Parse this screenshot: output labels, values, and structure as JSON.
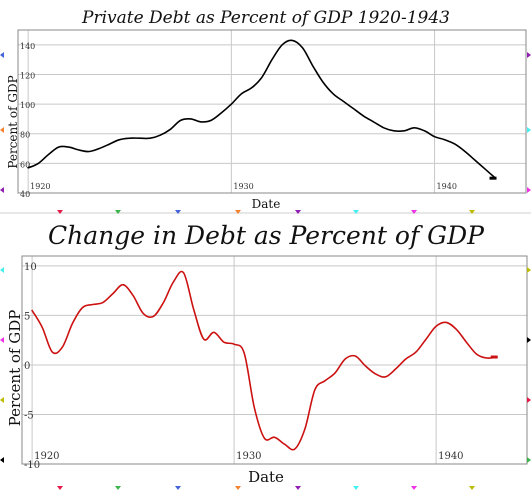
{
  "chart_data": [
    {
      "type": "line",
      "title": "Private Debt as Percent of GDP 1920-1943",
      "xlabel": "Date",
      "ylabel": "Percent of GDP",
      "xlim": [
        1919.5,
        1944.5
      ],
      "ylim": [
        40,
        150
      ],
      "xticks": [
        "1920",
        "1930",
        "1940"
      ],
      "yticks": [
        "40",
        "60",
        "80",
        "100",
        "120",
        "140"
      ],
      "grid": true,
      "series": [
        {
          "color": "#000000",
          "x": [
            1920,
            1920.5,
            1921,
            1921.5,
            1922,
            1922.5,
            1923,
            1923.5,
            1924,
            1924.5,
            1925,
            1925.5,
            1926,
            1926.5,
            1927,
            1927.5,
            1928,
            1928.5,
            1929,
            1929.5,
            1930,
            1930.5,
            1931,
            1931.5,
            1932,
            1932.5,
            1933,
            1933.5,
            1934,
            1934.5,
            1935,
            1935.5,
            1936,
            1936.5,
            1937,
            1937.5,
            1938,
            1938.5,
            1939,
            1939.5,
            1940,
            1940.5,
            1941,
            1941.5,
            1942,
            1942.5,
            1943
          ],
          "y": [
            57,
            60,
            66,
            71,
            71,
            69,
            68,
            70,
            73,
            76,
            77,
            77,
            77,
            79,
            83,
            89,
            90,
            88,
            89,
            94,
            100,
            107,
            111,
            118,
            130,
            140,
            143,
            138,
            126,
            115,
            107,
            102,
            97,
            92,
            88,
            84,
            82,
            82,
            84,
            82,
            78,
            76,
            73,
            68,
            62,
            56,
            50
          ]
        }
      ]
    },
    {
      "type": "line",
      "title": "Change in Debt as Percent of GDP",
      "xlabel": "Date",
      "ylabel": "Percent of GDP",
      "xlim": [
        1919.5,
        1944.5
      ],
      "ylim": [
        -10,
        11
      ],
      "xticks": [
        "1920",
        "1930",
        "1940"
      ],
      "yticks": [
        "-10",
        "-5",
        "0",
        "5",
        "10"
      ],
      "grid": true,
      "series": [
        {
          "color": "#cc1111",
          "x": [
            1920,
            1920.5,
            1921,
            1921.5,
            1922,
            1922.5,
            1923,
            1923.5,
            1924,
            1924.5,
            1925,
            1925.5,
            1926,
            1926.5,
            1927,
            1927.5,
            1928,
            1928.5,
            1929,
            1929.5,
            1930,
            1930.5,
            1931,
            1931.5,
            1932,
            1932.5,
            1933,
            1933.5,
            1934,
            1934.5,
            1935,
            1935.5,
            1936,
            1936.5,
            1937,
            1937.5,
            1938,
            1938.5,
            1939,
            1939.5,
            1940,
            1940.5,
            1941,
            1941.5,
            1942,
            1942.5,
            1943
          ],
          "y": [
            5.5,
            3.8,
            1.3,
            1.8,
            4.2,
            5.8,
            6.1,
            6.3,
            7.2,
            8.1,
            7.0,
            5.2,
            4.9,
            6.3,
            8.4,
            9.3,
            5.6,
            2.6,
            3.3,
            2.3,
            2.1,
            1.2,
            -4.3,
            -7.4,
            -7.3,
            -8.0,
            -8.5,
            -6.5,
            -2.5,
            -1.6,
            -0.8,
            0.6,
            0.9,
            -0.1,
            -0.9,
            -1.2,
            -0.4,
            0.6,
            1.3,
            2.6,
            3.9,
            4.3,
            3.6,
            2.3,
            1.1,
            0.7,
            0.8
          ]
        }
      ]
    }
  ]
}
